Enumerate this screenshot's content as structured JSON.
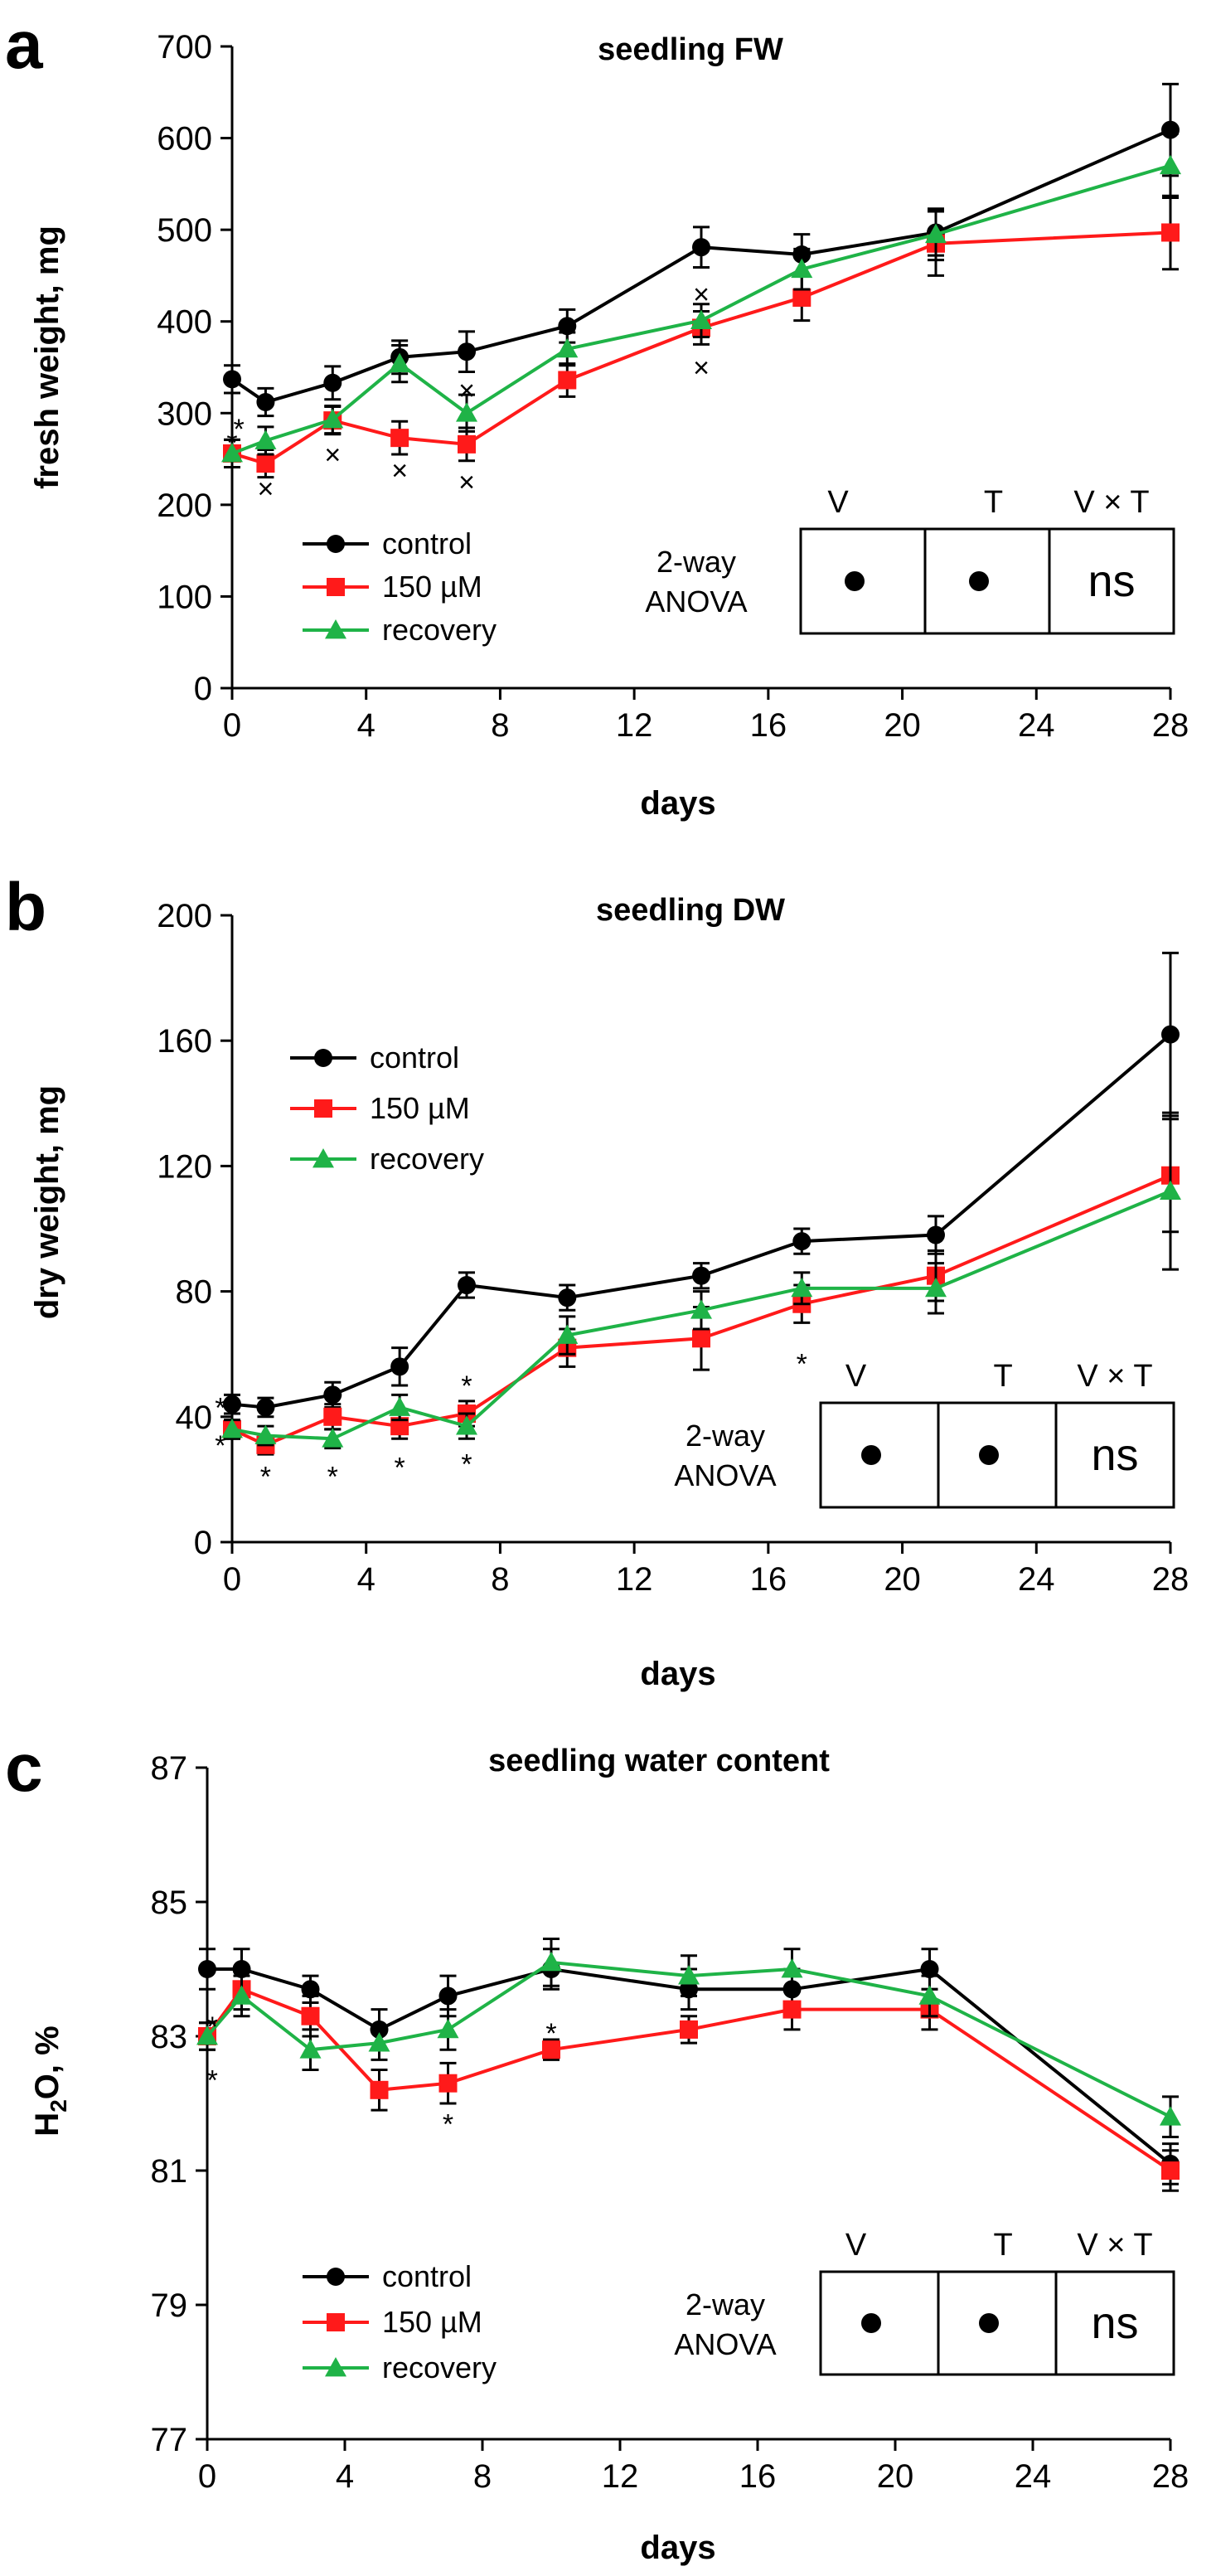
{
  "colors": {
    "control": "#000000",
    "stress": "#ff1a1a",
    "recovery": "#1fb347"
  },
  "chart_data": [
    {
      "type": "line",
      "panel": "a",
      "title": "seedling FW",
      "xlabel": "days",
      "ylabel": "fresh weight, mg",
      "xlim": [
        0,
        28
      ],
      "ylim": [
        0,
        700
      ],
      "xticks": [
        "0",
        "4",
        "8",
        "12",
        "16",
        "20",
        "24",
        "28"
      ],
      "yticks": [
        "0",
        "100",
        "200",
        "300",
        "400",
        "500",
        "600",
        "700"
      ],
      "series": [
        {
          "name": "control",
          "x": [
            0,
            1,
            3,
            5,
            7,
            10,
            14,
            17,
            21,
            28
          ],
          "values": [
            337,
            312,
            333,
            361,
            367,
            395,
            481,
            473,
            497,
            609
          ],
          "err": [
            15,
            15,
            18,
            18,
            22,
            18,
            22,
            22,
            25,
            50
          ]
        },
        {
          "name": "150 µM",
          "x": [
            0,
            1,
            3,
            5,
            7,
            10,
            14,
            17,
            21,
            28
          ],
          "values": [
            256,
            245,
            292,
            273,
            266,
            336,
            393,
            426,
            485,
            497
          ],
          "err": [
            15,
            15,
            15,
            18,
            18,
            18,
            18,
            25,
            35,
            40
          ]
        },
        {
          "name": "recovery",
          "x": [
            0,
            1,
            3,
            5,
            7,
            10,
            14,
            17,
            21,
            28
          ],
          "values": [
            256,
            270,
            293,
            354,
            300,
            370,
            401,
            457,
            495,
            570
          ],
          "err": [
            15,
            15,
            15,
            20,
            20,
            18,
            18,
            22,
            28,
            35
          ]
        }
      ],
      "annotations": [
        {
          "text": "*",
          "x": 0,
          "y": 268
        },
        {
          "text": "*",
          "x": 0.2,
          "y": 283
        },
        {
          "text": "×",
          "x": 1,
          "y": 218
        },
        {
          "text": "×",
          "x": 3,
          "y": 255
        },
        {
          "text": "×",
          "x": 5,
          "y": 238
        },
        {
          "text": "×",
          "x": 7,
          "y": 225
        },
        {
          "text": "×",
          "x": 7,
          "y": 325
        },
        {
          "text": "×",
          "x": 14,
          "y": 430
        },
        {
          "text": "×",
          "x": 14,
          "y": 350
        }
      ],
      "legend": [
        "control",
        "150 µM",
        "recovery"
      ],
      "anova": {
        "label_line1": "2-way",
        "label_line2": "ANOVA",
        "headers": [
          "V",
          "T",
          "V × T"
        ],
        "values": [
          "•",
          "•",
          "ns"
        ]
      }
    },
    {
      "type": "line",
      "panel": "b",
      "title": "seedling DW",
      "xlabel": "days",
      "ylabel": "dry weight, mg",
      "xlim": [
        0,
        28
      ],
      "ylim": [
        0,
        200
      ],
      "xticks": [
        "0",
        "4",
        "8",
        "12",
        "16",
        "20",
        "24",
        "28"
      ],
      "yticks": [
        "0",
        "40",
        "80",
        "120",
        "160",
        "200"
      ],
      "series": [
        {
          "name": "control",
          "x": [
            0,
            1,
            3,
            5,
            7,
            10,
            14,
            17,
            21,
            28
          ],
          "values": [
            44,
            43,
            47,
            56,
            82,
            78,
            85,
            96,
            98,
            162
          ],
          "err": [
            3,
            3,
            4,
            6,
            4,
            4,
            4,
            4,
            6,
            26
          ]
        },
        {
          "name": "150 µM",
          "x": [
            0,
            1,
            3,
            5,
            7,
            10,
            14,
            17,
            21,
            28
          ],
          "values": [
            36,
            31,
            40,
            37,
            41,
            62,
            65,
            76,
            85,
            117
          ],
          "err": [
            3,
            3,
            4,
            4,
            4,
            6,
            10,
            6,
            8,
            18
          ]
        },
        {
          "name": "recovery",
          "x": [
            0,
            1,
            3,
            5,
            7,
            10,
            14,
            17,
            21,
            28
          ],
          "values": [
            36,
            34,
            33,
            43,
            37,
            66,
            74,
            81,
            81,
            112
          ],
          "err": [
            3,
            3,
            3,
            4,
            4,
            6,
            6,
            5,
            8,
            25
          ]
        }
      ],
      "annotations": [
        {
          "text": "*",
          "x": -0.35,
          "y": 43
        },
        {
          "text": "*",
          "x": -0.35,
          "y": 31
        },
        {
          "text": "*",
          "x": 1,
          "y": 21
        },
        {
          "text": "*",
          "x": 3,
          "y": 21
        },
        {
          "text": "*",
          "x": 5,
          "y": 24
        },
        {
          "text": "*",
          "x": 7,
          "y": 50
        },
        {
          "text": "*",
          "x": 7,
          "y": 25
        },
        {
          "text": "*",
          "x": 17,
          "y": 57
        }
      ],
      "legend": [
        "control",
        "150 µM",
        "recovery"
      ],
      "anova": {
        "label_line1": "2-way",
        "label_line2": "ANOVA",
        "headers": [
          "V",
          "T",
          "V × T"
        ],
        "values": [
          "•",
          "•",
          "ns"
        ]
      }
    },
    {
      "type": "line",
      "panel": "c",
      "title": "seedling water content",
      "xlabel": "days",
      "ylabel": "H2O, %",
      "ylabel_main": "H",
      "ylabel_sub": "2",
      "ylabel_rest": "O, %",
      "xlim": [
        0,
        28
      ],
      "ylim": [
        77,
        87
      ],
      "xticks": [
        "0",
        "4",
        "8",
        "12",
        "16",
        "20",
        "24",
        "28"
      ],
      "yticks": [
        "77",
        "79",
        "81",
        "83",
        "85",
        "87"
      ],
      "series": [
        {
          "name": "control",
          "x": [
            0,
            1,
            3,
            5,
            7,
            10,
            14,
            17,
            21,
            28
          ],
          "values": [
            84.0,
            84.0,
            83.7,
            83.1,
            83.6,
            84.0,
            83.7,
            83.7,
            84.0,
            81.1
          ],
          "err": [
            0.3,
            0.3,
            0.2,
            0.3,
            0.3,
            0.3,
            0.3,
            0.3,
            0.3,
            0.3
          ]
        },
        {
          "name": "150 µM",
          "x": [
            0,
            1,
            3,
            5,
            7,
            10,
            14,
            17,
            21,
            28
          ],
          "values": [
            83.0,
            83.7,
            83.3,
            82.2,
            82.3,
            82.8,
            83.1,
            83.4,
            83.4,
            81.0
          ],
          "err": [
            0.2,
            0.3,
            0.3,
            0.3,
            0.3,
            0.15,
            0.2,
            0.3,
            0.3,
            0.3
          ]
        },
        {
          "name": "recovery",
          "x": [
            0,
            1,
            3,
            5,
            7,
            10,
            14,
            17,
            21,
            28
          ],
          "values": [
            83.0,
            83.6,
            82.8,
            82.9,
            83.1,
            84.1,
            83.9,
            84.0,
            83.6,
            81.8
          ],
          "err": [
            0.2,
            0.3,
            0.3,
            0.25,
            0.3,
            0.35,
            0.3,
            0.3,
            0.3,
            0.3
          ]
        }
      ],
      "annotations": [
        {
          "text": "*",
          "x": 0.15,
          "y": 83.15
        },
        {
          "text": "*",
          "x": 0.15,
          "y": 82.35
        },
        {
          "text": "*",
          "x": 7,
          "y": 81.7
        },
        {
          "text": "*",
          "x": 10,
          "y": 83.05
        }
      ],
      "legend": [
        "control",
        "150 µM",
        "recovery"
      ],
      "anova": {
        "label_line1": "2-way",
        "label_line2": "ANOVA",
        "headers": [
          "V",
          "T",
          "V × T"
        ],
        "values": [
          "•",
          "•",
          "ns"
        ]
      }
    }
  ]
}
